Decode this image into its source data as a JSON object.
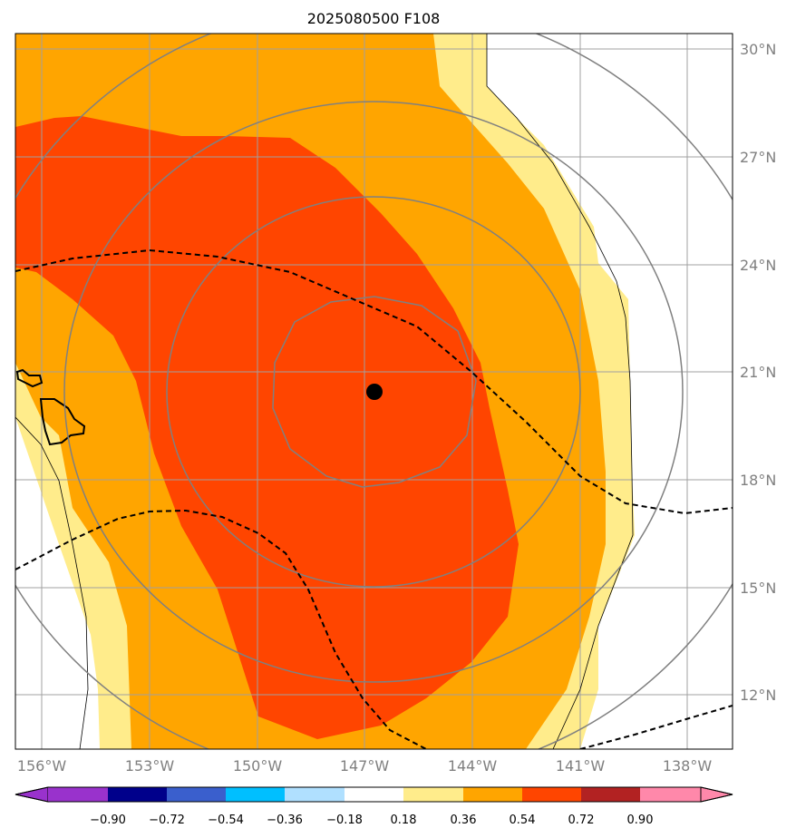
{
  "title": "2025080500 F108",
  "lon_ticks": [
    "156°W",
    "153°W",
    "150°W",
    "147°W",
    "144°W",
    "141°W",
    "138°W"
  ],
  "lat_ticks": [
    "30°N",
    "27°N",
    "24°N",
    "21°N",
    "18°N",
    "15°N",
    "12°N"
  ],
  "colorbar": {
    "labels": [
      "−0.90",
      "−0.72",
      "−0.54",
      "−0.36",
      "−0.18",
      "0.18",
      "0.36",
      "0.54",
      "0.72",
      "0.90"
    ],
    "colors": [
      "#9932cc",
      "#00008b",
      "#3a5fcd",
      "#00bfff",
      "#b0e0ff",
      "#ffffff",
      "#ffec8b",
      "#ffa500",
      "#ff4500",
      "#b22222",
      "#ff88aa"
    ]
  },
  "fill_colors": {
    "level_036": "#ffec8b",
    "level_054": "#ffa500",
    "level_072": "#ff4500"
  },
  "storm_center": {
    "lon": -146.8,
    "lat": 20.5
  }
}
